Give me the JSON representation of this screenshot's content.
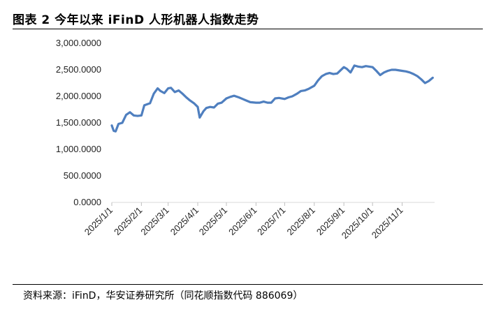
{
  "header": {
    "title": "图表 2 今年以来 iFinD 人形机器人指数走势"
  },
  "footer": {
    "source": "资料来源：iFinD，华安证券研究所（同花顺指数代码 886069）"
  },
  "chart_data": {
    "type": "line",
    "title": "",
    "xlabel": "",
    "ylabel": "",
    "ylim": [
      0,
      3000
    ],
    "yticks": [
      0,
      500,
      1000,
      1500,
      2000,
      2500,
      3000
    ],
    "ytick_labels": [
      "0.0000",
      "500.0000",
      "1,000.0000",
      "1,500.0000",
      "2,000.0000",
      "2,500.0000",
      "3,000.0000"
    ],
    "x_ticks": [
      "2025/1/1",
      "2025/2/1",
      "2025/3/1",
      "2025/4/1",
      "2025/5/1",
      "2025/6/1",
      "2025/7/1",
      "2025/8/1",
      "2025/9/1",
      "2025/10/1",
      "2025/11/1"
    ],
    "x_range": [
      "2025/1/1",
      "2025/12/5"
    ],
    "line_color": "#4f7fbf",
    "series": [
      {
        "name": "",
        "x": [
          "2025/1/1",
          "2025/1/3",
          "2025/1/5",
          "2025/1/8",
          "2025/1/12",
          "2025/1/16",
          "2025/1/20",
          "2025/1/24",
          "2025/1/28",
          "2025/2/1",
          "2025/2/4",
          "2025/2/7",
          "2025/2/10",
          "2025/2/14",
          "2025/2/18",
          "2025/2/21",
          "2025/2/25",
          "2025/3/1",
          "2025/3/4",
          "2025/3/8",
          "2025/3/12",
          "2025/3/16",
          "2025/3/20",
          "2025/3/24",
          "2025/3/28",
          "2025/4/1",
          "2025/4/3",
          "2025/4/7",
          "2025/4/10",
          "2025/4/14",
          "2025/4/18",
          "2025/4/22",
          "2025/4/26",
          "2025/5/1",
          "2025/5/5",
          "2025/5/9",
          "2025/5/14",
          "2025/5/18",
          "2025/5/22",
          "2025/5/26",
          "2025/6/1",
          "2025/6/5",
          "2025/6/9",
          "2025/6/13",
          "2025/6/17",
          "2025/6/21",
          "2025/6/25",
          "2025/7/1",
          "2025/7/5",
          "2025/7/9",
          "2025/7/14",
          "2025/7/18",
          "2025/7/22",
          "2025/7/26",
          "2025/8/1",
          "2025/8/5",
          "2025/8/9",
          "2025/8/13",
          "2025/8/17",
          "2025/8/21",
          "2025/8/25",
          "2025/9/1",
          "2025/9/4",
          "2025/9/8",
          "2025/9/12",
          "2025/9/16",
          "2025/9/20",
          "2025/9/24",
          "2025/10/1",
          "2025/10/5",
          "2025/10/9",
          "2025/10/13",
          "2025/10/17",
          "2025/10/21",
          "2025/10/25",
          "2025/11/1",
          "2025/11/5",
          "2025/11/9",
          "2025/11/13",
          "2025/11/17",
          "2025/11/21",
          "2025/11/25",
          "2025/11/29",
          "2025/12/3"
        ],
        "values": [
          1450,
          1350,
          1340,
          1480,
          1500,
          1650,
          1700,
          1640,
          1630,
          1640,
          1830,
          1850,
          1870,
          2050,
          2150,
          2100,
          2060,
          2150,
          2160,
          2080,
          2110,
          2050,
          1980,
          1920,
          1870,
          1800,
          1600,
          1720,
          1780,
          1800,
          1790,
          1860,
          1880,
          1960,
          1990,
          2010,
          1980,
          1950,
          1920,
          1890,
          1880,
          1880,
          1900,
          1880,
          1880,
          1960,
          1970,
          1950,
          1980,
          2000,
          2050,
          2100,
          2110,
          2140,
          2200,
          2300,
          2380,
          2420,
          2440,
          2420,
          2430,
          2550,
          2520,
          2450,
          2580,
          2560,
          2550,
          2570,
          2550,
          2480,
          2400,
          2450,
          2480,
          2500,
          2500,
          2480,
          2470,
          2450,
          2420,
          2380,
          2320,
          2250,
          2290,
          2350
        ]
      }
    ]
  }
}
